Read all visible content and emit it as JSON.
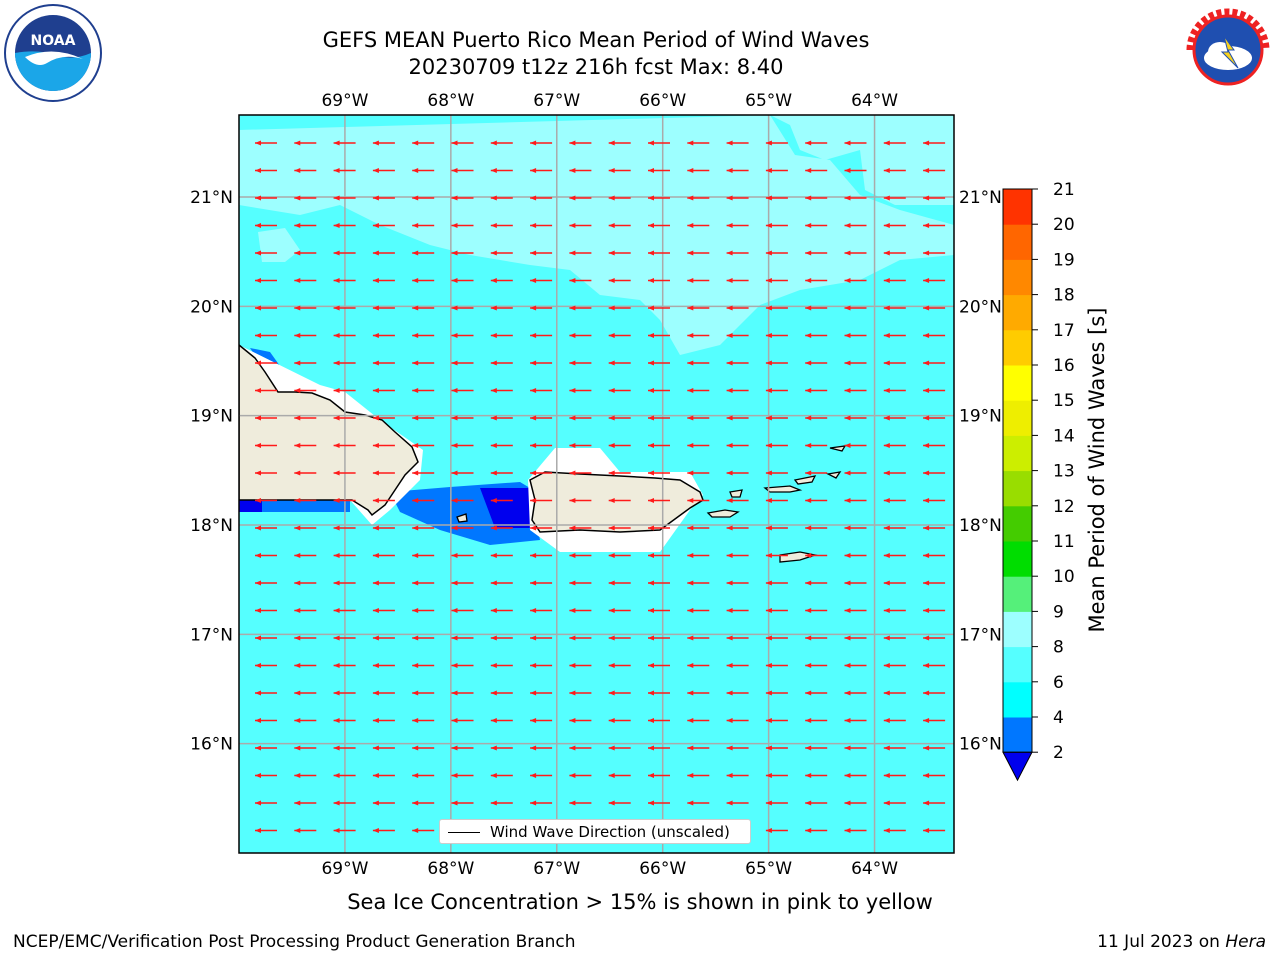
{
  "title": {
    "line1": "GEFS MEAN Puerto Rico Mean Period of Wind Waves",
    "line2": "20230709 t12z 216h fcst   Max: 8.40"
  },
  "logos": {
    "left": "noaa-logo",
    "right": "national-weather-service-logo"
  },
  "map": {
    "lon_labels": [
      "69°W",
      "68°W",
      "67°W",
      "66°W",
      "65°W",
      "64°W"
    ],
    "lat_labels": [
      "21°N",
      "20°N",
      "19°N",
      "18°N",
      "17°N",
      "16°N"
    ],
    "lon_range": [
      -70.0,
      -63.25
    ],
    "lat_range": [
      15.0,
      21.75
    ],
    "ocean_color": "#55ffff",
    "light_band_color": "#9dffff",
    "low_period_colors": [
      "#0077ff",
      "#0000ee"
    ],
    "land_color": "#efecdc",
    "arrow_color": "#ff1a1a",
    "arrow_direction": "westward"
  },
  "legend": {
    "label": "Wind Wave Direction (unscaled)"
  },
  "colorbar": {
    "title": "Mean Period of Wind Waves [s]",
    "ticks": [
      "2",
      "4",
      "6",
      "8",
      "9",
      "10",
      "11",
      "12",
      "13",
      "14",
      "15",
      "16",
      "17",
      "18",
      "19",
      "20",
      "21"
    ],
    "colors": [
      "#0077ff",
      "#00ffff",
      "#55ffff",
      "#9dffff",
      "#55f07a",
      "#00dd00",
      "#44cc00",
      "#99dd00",
      "#ccee00",
      "#eeee00",
      "#ffff00",
      "#ffcc00",
      "#ffaa00",
      "#ff8800",
      "#ff6600",
      "#ff3300",
      "#ff0000"
    ],
    "under_color": "#0000ee",
    "extend": "min"
  },
  "note": "Sea Ice Concentration > 15% is shown in pink to yellow",
  "footer": {
    "left": "NCEP/EMC/Verification Post Processing Product Generation Branch",
    "right_date": "11 Jul 2023 on ",
    "right_host": "Hera"
  }
}
